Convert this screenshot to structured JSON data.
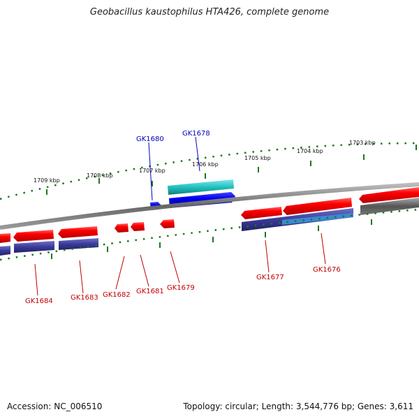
{
  "title": "Geobacillus kaustophilus HTA426, complete genome",
  "footer": {
    "accession": "Accession: NC_006510",
    "topology": "Topology: circular; Length: 3,544,776 bp; Genes: 3,611"
  },
  "kbp_ticks": [
    "1709 kbp",
    "1708 kbp",
    "1707 kbp",
    "1706 kbp",
    "1705 kbp",
    "1704 kbp",
    "1703 kbp"
  ],
  "gene_labels": {
    "top": [
      "GK1680",
      "GK1678"
    ],
    "bottom": [
      "GK1684",
      "GK1683",
      "GK1682",
      "GK1681",
      "GK1679",
      "GK1677",
      "GK1676"
    ]
  },
  "colors": {
    "forward_gene": "#0000ee",
    "forward_gene_alt": "#20c0c0",
    "reverse_gene": "#ee0000",
    "reverse_rna": "#3a3a9a",
    "backbone": "#777777",
    "tick": "#1a7a1a",
    "label_red": "#c00000",
    "label_blue": "#0000c0"
  }
}
